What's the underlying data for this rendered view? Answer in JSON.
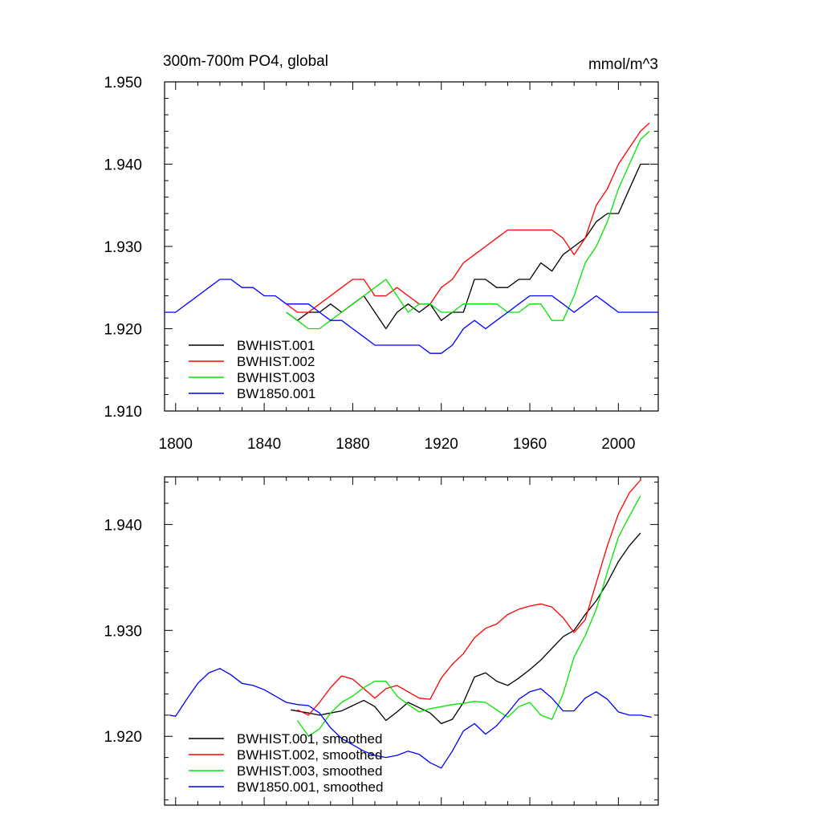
{
  "chart_data": [
    {
      "type": "line",
      "title": "300m-700m PO4, global",
      "units": "mmol/m^3",
      "xlim": [
        1795,
        2018
      ],
      "ylim": [
        1.91,
        1.95
      ],
      "x_ticks": [
        1800,
        1840,
        1880,
        1920,
        1960,
        2000
      ],
      "x_tick_labels": [
        "1800",
        "1840",
        "1880",
        "1920",
        "1960",
        "2000"
      ],
      "y_ticks": [
        1.91,
        1.92,
        1.93,
        1.94,
        1.95
      ],
      "y_tick_labels": [
        "1.910",
        "1.920",
        "1.930",
        "1.940",
        "1.950"
      ],
      "legend_position": "lower-left",
      "series": [
        {
          "name": "BWHIST.001",
          "color": "#000000",
          "x": [
            1850,
            1855,
            1860,
            1865,
            1870,
            1875,
            1880,
            1885,
            1890,
            1895,
            1900,
            1905,
            1910,
            1915,
            1920,
            1925,
            1930,
            1935,
            1940,
            1945,
            1950,
            1955,
            1960,
            1965,
            1970,
            1975,
            1980,
            1985,
            1990,
            1995,
            2000,
            2005,
            2010,
            2014
          ],
          "y": [
            1.922,
            1.921,
            1.922,
            1.922,
            1.923,
            1.922,
            1.923,
            1.924,
            1.922,
            1.92,
            1.922,
            1.923,
            1.922,
            1.923,
            1.921,
            1.922,
            1.922,
            1.926,
            1.926,
            1.925,
            1.925,
            1.926,
            1.926,
            1.928,
            1.927,
            1.929,
            1.93,
            1.931,
            1.933,
            1.934,
            1.934,
            1.937,
            1.94,
            1.94
          ]
        },
        {
          "name": "BWHIST.002",
          "color": "#ff0000",
          "x": [
            1850,
            1855,
            1860,
            1865,
            1870,
            1875,
            1880,
            1885,
            1890,
            1895,
            1900,
            1905,
            1910,
            1915,
            1920,
            1925,
            1930,
            1935,
            1940,
            1945,
            1950,
            1955,
            1960,
            1965,
            1970,
            1975,
            1980,
            1985,
            1990,
            1995,
            2000,
            2005,
            2010,
            2014
          ],
          "y": [
            1.923,
            1.922,
            1.922,
            1.923,
            1.924,
            1.925,
            1.926,
            1.926,
            1.924,
            1.924,
            1.925,
            1.924,
            1.923,
            1.923,
            1.925,
            1.926,
            1.928,
            1.929,
            1.93,
            1.931,
            1.932,
            1.932,
            1.932,
            1.932,
            1.932,
            1.931,
            1.929,
            1.931,
            1.935,
            1.937,
            1.94,
            1.942,
            1.944,
            1.945
          ]
        },
        {
          "name": "BWHIST.003",
          "color": "#00e600",
          "x": [
            1850,
            1855,
            1860,
            1865,
            1870,
            1875,
            1880,
            1885,
            1890,
            1895,
            1900,
            1905,
            1910,
            1915,
            1920,
            1925,
            1930,
            1935,
            1940,
            1945,
            1950,
            1955,
            1960,
            1965,
            1970,
            1975,
            1980,
            1985,
            1990,
            1995,
            2000,
            2005,
            2010,
            2014
          ],
          "y": [
            1.922,
            1.921,
            1.92,
            1.92,
            1.921,
            1.922,
            1.923,
            1.924,
            1.925,
            1.926,
            1.924,
            1.922,
            1.923,
            1.923,
            1.922,
            1.922,
            1.923,
            1.923,
            1.923,
            1.923,
            1.922,
            1.922,
            1.923,
            1.923,
            1.921,
            1.921,
            1.924,
            1.928,
            1.93,
            1.933,
            1.937,
            1.94,
            1.943,
            1.944
          ]
        },
        {
          "name": "BW1850.001",
          "color": "#0000ff",
          "x": [
            1795,
            1800,
            1805,
            1810,
            1815,
            1820,
            1825,
            1830,
            1835,
            1840,
            1845,
            1850,
            1855,
            1860,
            1865,
            1870,
            1875,
            1880,
            1885,
            1890,
            1895,
            1900,
            1905,
            1910,
            1915,
            1920,
            1925,
            1930,
            1935,
            1940,
            1945,
            1950,
            1955,
            1960,
            1965,
            1970,
            1975,
            1980,
            1985,
            1990,
            1995,
            2000,
            2005,
            2010,
            2015,
            2018
          ],
          "y": [
            1.922,
            1.922,
            1.923,
            1.924,
            1.925,
            1.926,
            1.926,
            1.925,
            1.925,
            1.924,
            1.924,
            1.923,
            1.923,
            1.923,
            1.922,
            1.921,
            1.921,
            1.92,
            1.919,
            1.918,
            1.918,
            1.918,
            1.918,
            1.918,
            1.917,
            1.917,
            1.918,
            1.92,
            1.921,
            1.92,
            1.921,
            1.922,
            1.923,
            1.924,
            1.924,
            1.924,
            1.923,
            1.922,
            1.923,
            1.924,
            1.923,
            1.922,
            1.922,
            1.922,
            1.922,
            1.922
          ]
        }
      ]
    },
    {
      "type": "line",
      "xlim": [
        1795,
        2018
      ],
      "ylim": [
        1.9135,
        1.9445
      ],
      "x_ticks": [
        1800,
        1840,
        1880,
        1920,
        1960,
        2000
      ],
      "y_ticks": [
        1.92,
        1.93,
        1.94
      ],
      "y_tick_labels": [
        "1.920",
        "1.930",
        "1.940"
      ],
      "legend_position": "lower-left",
      "series": [
        {
          "name": "BWHIST.001, smoothed",
          "color": "#000000",
          "x": [
            1852,
            1860,
            1865,
            1870,
            1875,
            1880,
            1885,
            1890,
            1895,
            1900,
            1905,
            1910,
            1915,
            1920,
            1925,
            1930,
            1935,
            1940,
            1945,
            1950,
            1955,
            1960,
            1965,
            1970,
            1975,
            1980,
            1985,
            1990,
            1995,
            2000,
            2005,
            2010
          ],
          "y": [
            1.9225,
            1.9222,
            1.922,
            1.9222,
            1.9224,
            1.9229,
            1.9234,
            1.9228,
            1.9215,
            1.9223,
            1.9232,
            1.9227,
            1.9222,
            1.9212,
            1.9216,
            1.9232,
            1.9256,
            1.926,
            1.9252,
            1.9248,
            1.9255,
            1.9263,
            1.9272,
            1.9283,
            1.9294,
            1.93,
            1.9315,
            1.9328,
            1.9345,
            1.9365,
            1.938,
            1.9392
          ]
        },
        {
          "name": "BWHIST.002, smoothed",
          "color": "#ff0000",
          "x": [
            1855,
            1860,
            1865,
            1870,
            1875,
            1880,
            1885,
            1890,
            1895,
            1900,
            1905,
            1910,
            1915,
            1920,
            1925,
            1930,
            1935,
            1940,
            1945,
            1950,
            1955,
            1960,
            1965,
            1970,
            1975,
            1980,
            1985,
            1990,
            1995,
            2000,
            2005,
            2010
          ],
          "y": [
            1.9225,
            1.922,
            1.9232,
            1.9246,
            1.9257,
            1.9254,
            1.9245,
            1.9236,
            1.9245,
            1.9248,
            1.9242,
            1.9236,
            1.9235,
            1.9255,
            1.9268,
            1.9278,
            1.9293,
            1.9302,
            1.9306,
            1.9315,
            1.932,
            1.9323,
            1.9325,
            1.9322,
            1.9312,
            1.9298,
            1.931,
            1.9345,
            1.938,
            1.941,
            1.943,
            1.9442
          ]
        },
        {
          "name": "BWHIST.003, smoothed",
          "color": "#00e600",
          "x": [
            1855,
            1860,
            1865,
            1870,
            1875,
            1880,
            1885,
            1890,
            1895,
            1900,
            1905,
            1910,
            1915,
            1920,
            1925,
            1930,
            1935,
            1940,
            1945,
            1950,
            1955,
            1960,
            1965,
            1970,
            1975,
            1980,
            1985,
            1990,
            1995,
            2000,
            2005,
            2010
          ],
          "y": [
            1.9215,
            1.92,
            1.9207,
            1.9222,
            1.9232,
            1.9238,
            1.9246,
            1.9252,
            1.9252,
            1.9238,
            1.923,
            1.9223,
            1.9226,
            1.9228,
            1.923,
            1.9231,
            1.9233,
            1.9232,
            1.9225,
            1.9218,
            1.9228,
            1.9232,
            1.922,
            1.9216,
            1.924,
            1.9275,
            1.9295,
            1.932,
            1.9355,
            1.9388,
            1.9408,
            1.9427
          ]
        },
        {
          "name": "BW1850.001, smoothed",
          "color": "#0000ff",
          "x": [
            1797,
            1800,
            1805,
            1810,
            1815,
            1820,
            1825,
            1830,
            1835,
            1840,
            1845,
            1850,
            1855,
            1860,
            1865,
            1870,
            1875,
            1880,
            1885,
            1890,
            1895,
            1900,
            1905,
            1910,
            1915,
            1920,
            1925,
            1930,
            1935,
            1940,
            1945,
            1950,
            1955,
            1960,
            1965,
            1970,
            1975,
            1980,
            1985,
            1990,
            1995,
            2000,
            2005,
            2010,
            2015
          ],
          "y": [
            1.922,
            1.9219,
            1.9235,
            1.925,
            1.926,
            1.9264,
            1.9258,
            1.925,
            1.9248,
            1.9244,
            1.9238,
            1.9232,
            1.923,
            1.9229,
            1.9222,
            1.9208,
            1.9198,
            1.9192,
            1.9186,
            1.9182,
            1.918,
            1.9182,
            1.9186,
            1.9183,
            1.9175,
            1.917,
            1.9186,
            1.9205,
            1.9212,
            1.9202,
            1.921,
            1.9222,
            1.9235,
            1.9242,
            1.9245,
            1.9236,
            1.9224,
            1.9224,
            1.9236,
            1.9242,
            1.9235,
            1.9223,
            1.922,
            1.922,
            1.9218
          ]
        }
      ]
    }
  ]
}
